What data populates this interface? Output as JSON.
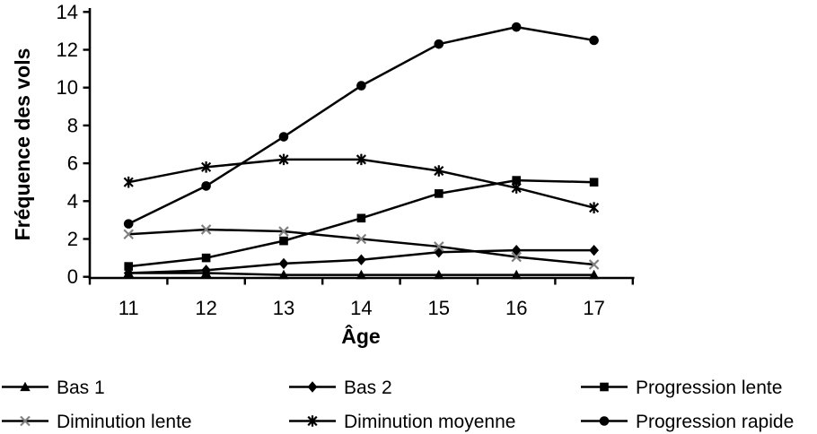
{
  "chart_data": {
    "type": "line",
    "title": "",
    "xlabel": "Âge",
    "ylabel": "Fréquence des vols",
    "x": [
      11,
      12,
      13,
      14,
      15,
      16,
      17
    ],
    "x_tick_labels": [
      "11",
      "12",
      "13",
      "14",
      "15",
      "16",
      "17"
    ],
    "y_tick_labels": [
      "0",
      "2",
      "4",
      "6",
      "8",
      "10",
      "12",
      "14"
    ],
    "ylim": [
      0,
      14
    ],
    "ytick_step": 2,
    "grid": false,
    "legend_position": "bottom",
    "background_color": "#ffffff",
    "axis_color": "#000000",
    "line_color": "#000000",
    "x_marker_color": "#808080",
    "series": [
      {
        "name": "Bas 1",
        "marker": "triangle",
        "color": "#000000",
        "marker_color": "#000000",
        "values": [
          0.2,
          0.2,
          0.1,
          0.1,
          0.1,
          0.1,
          0.1
        ]
      },
      {
        "name": "Bas 2",
        "marker": "diamond",
        "color": "#000000",
        "marker_color": "#000000",
        "values": [
          0.2,
          0.35,
          0.7,
          0.9,
          1.3,
          1.4,
          1.4
        ]
      },
      {
        "name": "Progression lente",
        "marker": "square",
        "color": "#000000",
        "marker_color": "#000000",
        "values": [
          0.55,
          1.0,
          1.9,
          3.1,
          4.4,
          5.1,
          5.0
        ]
      },
      {
        "name": "Diminution lente",
        "marker": "x",
        "color": "#000000",
        "marker_color": "#808080",
        "values": [
          2.25,
          2.5,
          2.4,
          2.0,
          1.6,
          1.05,
          0.65
        ]
      },
      {
        "name": "Diminution moyenne",
        "marker": "asterisk",
        "color": "#000000",
        "marker_color": "#000000",
        "values": [
          5.0,
          5.8,
          6.2,
          6.2,
          5.6,
          4.7,
          3.65
        ]
      },
      {
        "name": "Progression rapide",
        "marker": "circle",
        "color": "#000000",
        "marker_color": "#000000",
        "values": [
          2.8,
          4.8,
          7.4,
          10.1,
          12.3,
          13.2,
          12.5
        ]
      }
    ]
  }
}
